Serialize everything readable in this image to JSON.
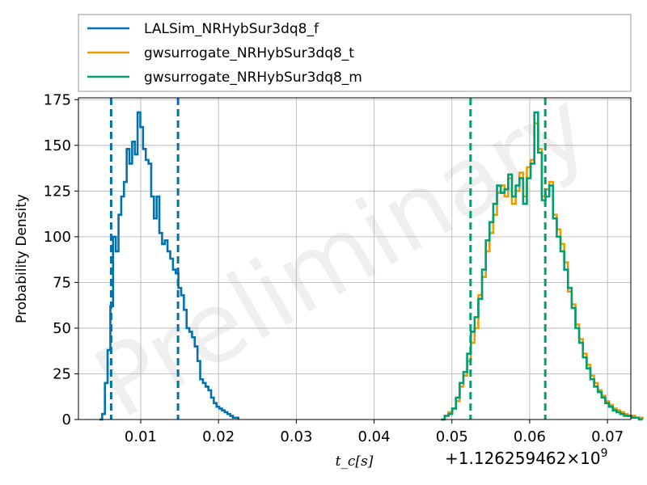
{
  "chart_data": {
    "type": "histogram",
    "ylabel": "Probability Density",
    "xlabel": "t_c[s]",
    "x_offset_label": "+1.126259462×10",
    "x_offset_exponent": "9",
    "watermark": "Preliminary",
    "xlim": [
      0.002,
      0.073
    ],
    "ylim": [
      0,
      176
    ],
    "xticks": [
      0.01,
      0.02,
      0.03,
      0.04,
      0.05,
      0.06,
      0.07
    ],
    "xtick_labels": [
      "0.01",
      "0.02",
      "0.03",
      "0.04",
      "0.05",
      "0.06",
      "0.07"
    ],
    "yticks": [
      0,
      25,
      50,
      75,
      100,
      125,
      150,
      175
    ],
    "ytick_labels": [
      "0",
      "25",
      "50",
      "75",
      "100",
      "125",
      "150",
      "175"
    ],
    "grid": true,
    "legend_position": "top (outside, above plot)",
    "series": [
      {
        "name": "LALSim_NRHybSur3dq8_f",
        "color": "#0072B2",
        "bin_start": 0.0047,
        "bin_width": 0.00035,
        "counts": [
          0,
          3,
          20,
          38,
          62,
          100,
          92,
          112,
          122,
          130,
          148,
          140,
          152,
          145,
          168,
          160,
          148,
          142,
          140,
          122,
          110,
          122,
          102,
          96,
          98,
          92,
          88,
          82,
          80,
          72,
          68,
          60,
          50,
          48,
          45,
          40,
          32,
          22,
          20,
          18,
          16,
          12,
          9,
          7,
          6,
          5,
          4,
          3,
          2,
          1,
          1
        ]
      },
      {
        "name": "gwsurrogate_NRHybSur3dq8_t",
        "color": "#E69F00",
        "bin_start": 0.0486,
        "bin_width": 0.00048,
        "counts": [
          0,
          2,
          4,
          6,
          10,
          18,
          24,
          32,
          42,
          50,
          68,
          78,
          92,
          102,
          112,
          124,
          128,
          122,
          132,
          118,
          125,
          135,
          122,
          138,
          142,
          162,
          148,
          122,
          126,
          130,
          112,
          104,
          96,
          86,
          70,
          63,
          52,
          44,
          36,
          30,
          24,
          20,
          16,
          13,
          10,
          8,
          6,
          5,
          4,
          3,
          2,
          2,
          1,
          1
        ]
      },
      {
        "name": "gwsurrogate_NRHybSur3dq8_m",
        "color": "#009E73",
        "bin_start": 0.0486,
        "bin_width": 0.00048,
        "counts": [
          0,
          2,
          3,
          6,
          12,
          20,
          26,
          36,
          48,
          56,
          66,
          82,
          98,
          108,
          118,
          128,
          124,
          126,
          134,
          122,
          128,
          132,
          118,
          132,
          140,
          168,
          146,
          120,
          122,
          128,
          110,
          100,
          92,
          82,
          72,
          61,
          50,
          42,
          34,
          28,
          22,
          18,
          15,
          12,
          9,
          7,
          5,
          4,
          3,
          2,
          2,
          1,
          1,
          0
        ]
      }
    ],
    "vlines": [
      {
        "x": 0.0062,
        "color": "#0072B2"
      },
      {
        "x": 0.0148,
        "color": "#0072B2"
      },
      {
        "x": 0.0524,
        "color": "#009E73"
      },
      {
        "x": 0.062,
        "color": "#009E73"
      }
    ]
  }
}
